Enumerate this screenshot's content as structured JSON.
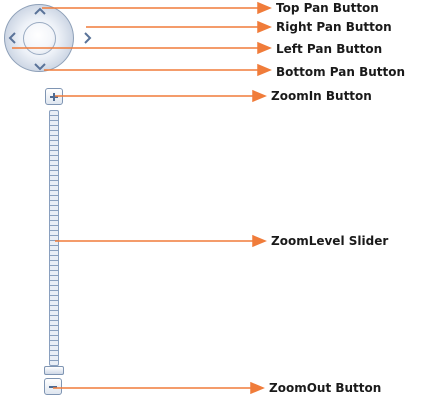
{
  "colors": {
    "arrow": "#f07c3a",
    "control_border": "#8ea0b8",
    "control_glyph": "#5a7399",
    "label_text": "#1a1a1a"
  },
  "icons": {
    "pan_up": "chevron-up-icon",
    "pan_down": "chevron-down-icon",
    "pan_left": "chevron-left-icon",
    "pan_right": "chevron-right-icon",
    "zoom_in": "plus-icon",
    "zoom_out": "minus-icon"
  },
  "labels": {
    "top_pan": "Top Pan Button",
    "right_pan": "Right Pan Button",
    "left_pan": "Left Pan Button",
    "bottom_pan": "Bottom Pan Button",
    "zoom_in": "ZoomIn Button",
    "zoom_level_slider": "ZoomLevel Slider",
    "zoom_out": "ZoomOut Button"
  }
}
